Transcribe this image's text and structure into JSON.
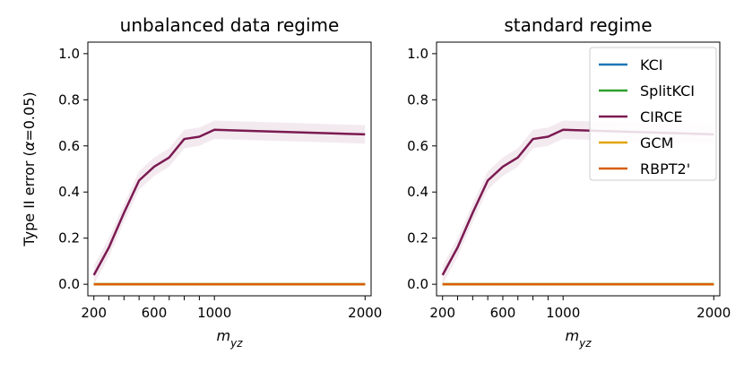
{
  "chart_data": [
    {
      "type": "line",
      "title": "unbalanced data regime",
      "xlabel_main": "m",
      "xlabel_sub": "yz",
      "ylabel_prefix": "Type II error (",
      "ylabel_symbol": "α",
      "ylabel_suffix": "=0.05)",
      "xlim": [
        160,
        2040
      ],
      "ylim": [
        -0.05,
        1.05
      ],
      "x_ticks_labeled": [
        200,
        600,
        1000,
        2000
      ],
      "x_ticks_minor": [
        300,
        400,
        500,
        700,
        800,
        900
      ],
      "y_ticks": [
        0.0,
        0.2,
        0.4,
        0.6,
        0.8,
        1.0
      ],
      "y_tick_labels": [
        "0.0",
        "0.2",
        "0.4",
        "0.6",
        "0.8",
        "1.0"
      ],
      "x_tick_labels": [
        "200",
        "600",
        "1000",
        "2000"
      ],
      "legend": null,
      "series": [
        {
          "name": "KCI",
          "color": "#1f77b4",
          "x": [
            200,
            300,
            400,
            500,
            600,
            700,
            800,
            900,
            1000,
            2000
          ],
          "y": [
            0,
            0,
            0,
            0,
            0,
            0,
            0,
            0,
            0,
            0
          ]
        },
        {
          "name": "SplitKCI",
          "color": "#2ca02c",
          "x": [
            200,
            300,
            400,
            500,
            600,
            700,
            800,
            900,
            1000,
            2000
          ],
          "y": [
            0,
            0,
            0,
            0,
            0,
            0,
            0,
            0,
            0,
            0
          ]
        },
        {
          "name": "CIRCE",
          "color": "#7b1a52",
          "x": [
            200,
            300,
            400,
            500,
            600,
            700,
            800,
            900,
            1000,
            2000
          ],
          "y": [
            0.04,
            0.16,
            0.31,
            0.45,
            0.51,
            0.55,
            0.63,
            0.64,
            0.67,
            0.65
          ],
          "band": 0.04
        },
        {
          "name": "GCM",
          "color": "#e3a400",
          "x": [
            200,
            300,
            400,
            500,
            600,
            700,
            800,
            900,
            1000,
            2000
          ],
          "y": [
            0,
            0,
            0,
            0,
            0,
            0,
            0,
            0,
            0,
            0
          ]
        },
        {
          "name": "RBPT2'",
          "color": "#d95f02",
          "x": [
            200,
            300,
            400,
            500,
            600,
            700,
            800,
            900,
            1000,
            2000
          ],
          "y": [
            0,
            0,
            0,
            0,
            0,
            0,
            0,
            0,
            0,
            0
          ]
        }
      ]
    },
    {
      "type": "line",
      "title": "standard regime",
      "xlabel_main": "m",
      "xlabel_sub": "yz",
      "xlim": [
        160,
        2040
      ],
      "ylim": [
        -0.05,
        1.05
      ],
      "x_ticks_labeled": [
        200,
        600,
        1000,
        2000
      ],
      "x_ticks_minor": [
        300,
        400,
        500,
        700,
        800,
        900
      ],
      "y_ticks": [
        0.0,
        0.2,
        0.4,
        0.6,
        0.8,
        1.0
      ],
      "y_tick_labels": [
        "0.0",
        "0.2",
        "0.4",
        "0.6",
        "0.8",
        "1.0"
      ],
      "x_tick_labels": [
        "200",
        "600",
        "1000",
        "2000"
      ],
      "legend": "top-right",
      "series": [
        {
          "name": "KCI",
          "color": "#1f77b4",
          "x": [
            200,
            300,
            400,
            500,
            600,
            700,
            800,
            900,
            1000,
            2000
          ],
          "y": [
            0,
            0,
            0,
            0,
            0,
            0,
            0,
            0,
            0,
            0
          ]
        },
        {
          "name": "SplitKCI",
          "color": "#2ca02c",
          "x": [
            200,
            300,
            400,
            500,
            600,
            700,
            800,
            900,
            1000,
            2000
          ],
          "y": [
            0,
            0,
            0,
            0,
            0,
            0,
            0,
            0,
            0,
            0
          ]
        },
        {
          "name": "CIRCE",
          "color": "#7b1a52",
          "x": [
            200,
            300,
            400,
            500,
            600,
            700,
            800,
            900,
            1000,
            2000
          ],
          "y": [
            0.04,
            0.16,
            0.31,
            0.45,
            0.51,
            0.55,
            0.63,
            0.64,
            0.67,
            0.65
          ],
          "band": 0.04
        },
        {
          "name": "GCM",
          "color": "#e3a400",
          "x": [
            200,
            300,
            400,
            500,
            600,
            700,
            800,
            900,
            1000,
            2000
          ],
          "y": [
            0,
            0,
            0,
            0,
            0,
            0,
            0,
            0,
            0,
            0
          ]
        },
        {
          "name": "RBPT2'",
          "color": "#d95f02",
          "x": [
            200,
            300,
            400,
            500,
            600,
            700,
            800,
            900,
            1000,
            2000
          ],
          "y": [
            0,
            0,
            0,
            0,
            0,
            0,
            0,
            0,
            0,
            0
          ]
        }
      ]
    }
  ],
  "legend": {
    "entries": [
      {
        "label": "KCI",
        "color": "#1f77b4"
      },
      {
        "label": "SplitKCI",
        "color": "#2ca02c"
      },
      {
        "label": "CIRCE",
        "color": "#7b1a52"
      },
      {
        "label": "GCM",
        "color": "#e3a400"
      },
      {
        "label": "RBPT2'",
        "color": "#d95f02"
      }
    ]
  }
}
